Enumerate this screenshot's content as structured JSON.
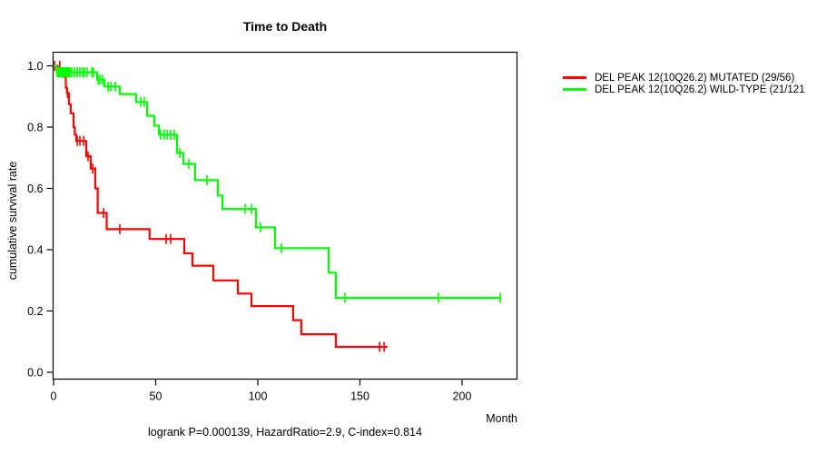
{
  "chart_data": {
    "type": "line",
    "subtype": "kaplan-meier-step",
    "title": "Time to Death",
    "xlabel": "Month",
    "ylabel": "cumulative survival rate",
    "xlim": [
      0,
      227
    ],
    "ylim": [
      0.0,
      1.0
    ],
    "grid": false,
    "legend_position": "right-outside",
    "x_ticks": [
      [
        0,
        "0"
      ],
      [
        50,
        "50"
      ],
      [
        100,
        "100"
      ],
      [
        150,
        "150"
      ],
      [
        200,
        "200"
      ]
    ],
    "y_ticks": [
      [
        0.0,
        "0.0"
      ],
      [
        0.2,
        "0.2"
      ],
      [
        0.4,
        "0.4"
      ],
      [
        0.6,
        "0.6"
      ],
      [
        0.8,
        "0.8"
      ],
      [
        1.0,
        "1.0"
      ]
    ],
    "caption": "logrank P=0.000139, HazardRatio=2.9, C-index=0.814",
    "stats": {
      "logrank_p": "0.000139",
      "hazard_ratio": "2.9",
      "c_index": "0.814"
    },
    "series": [
      {
        "name": "DEL PEAK 12(10Q26.2) MUTATED (29/56)",
        "color": "#ff0000",
        "points": [
          [
            0,
            1.0
          ],
          [
            2,
            0.982
          ],
          [
            5,
            0.964
          ],
          [
            6,
            0.929
          ],
          [
            6.6,
            0.911
          ],
          [
            7.5,
            0.875
          ],
          [
            8.4,
            0.845
          ],
          [
            9.8,
            0.8
          ],
          [
            10.4,
            0.775
          ],
          [
            11.1,
            0.755
          ],
          [
            16,
            0.705
          ],
          [
            18.2,
            0.665
          ],
          [
            20.4,
            0.6
          ],
          [
            21.6,
            0.52
          ],
          [
            26,
            0.467
          ],
          [
            47,
            0.435
          ],
          [
            64,
            0.388
          ],
          [
            68,
            0.348
          ],
          [
            78.2,
            0.3
          ],
          [
            90.2,
            0.257
          ],
          [
            96.9,
            0.216
          ],
          [
            117.3,
            0.17
          ],
          [
            121.3,
            0.124
          ],
          [
            138.2,
            0.083
          ],
          [
            163.5,
            0.083
          ]
        ],
        "censors": [
          [
            0.5,
            1.0
          ],
          [
            3,
            1.0
          ],
          [
            6.8,
            0.911
          ],
          [
            11.6,
            0.755
          ],
          [
            12.9,
            0.755
          ],
          [
            14.7,
            0.755
          ],
          [
            16.9,
            0.705
          ],
          [
            19.1,
            0.665
          ],
          [
            24.5,
            0.52
          ],
          [
            32.4,
            0.467
          ],
          [
            55.1,
            0.435
          ],
          [
            57.3,
            0.435
          ],
          [
            159.6,
            0.083
          ],
          [
            161.8,
            0.083
          ]
        ]
      },
      {
        "name": "DEL PEAK 12(10Q26.2) WILD-TYPE (21/121",
        "color": "#00ff00",
        "points": [
          [
            0,
            1.0
          ],
          [
            1.5,
            0.979
          ],
          [
            21.3,
            0.955
          ],
          [
            24.9,
            0.932
          ],
          [
            32.4,
            0.908
          ],
          [
            40.4,
            0.882
          ],
          [
            45.8,
            0.837
          ],
          [
            49.3,
            0.805
          ],
          [
            51.6,
            0.775
          ],
          [
            60.4,
            0.716
          ],
          [
            63.6,
            0.68
          ],
          [
            69.3,
            0.627
          ],
          [
            80.4,
            0.577
          ],
          [
            82.7,
            0.533
          ],
          [
            99.1,
            0.473
          ],
          [
            108.4,
            0.405
          ],
          [
            134.7,
            0.325
          ],
          [
            138.2,
            0.243
          ],
          [
            219,
            0.243
          ]
        ],
        "censors": [
          [
            1.8,
            0.979
          ],
          [
            2.2,
            0.979
          ],
          [
            2.7,
            0.979
          ],
          [
            3.1,
            0.979
          ],
          [
            3.6,
            0.979
          ],
          [
            4,
            0.979
          ],
          [
            4.4,
            0.979
          ],
          [
            4.9,
            0.979
          ],
          [
            5.3,
            0.979
          ],
          [
            5.8,
            0.979
          ],
          [
            6.2,
            0.979
          ],
          [
            6.7,
            0.979
          ],
          [
            7.1,
            0.979
          ],
          [
            7.6,
            0.979
          ],
          [
            8,
            0.979
          ],
          [
            8.9,
            0.979
          ],
          [
            10.2,
            0.979
          ],
          [
            11.6,
            0.979
          ],
          [
            12.9,
            0.979
          ],
          [
            14.2,
            0.979
          ],
          [
            15.1,
            0.979
          ],
          [
            16.4,
            0.979
          ],
          [
            18.7,
            0.979
          ],
          [
            19.6,
            0.979
          ],
          [
            21.8,
            0.955
          ],
          [
            22.7,
            0.955
          ],
          [
            24,
            0.955
          ],
          [
            26.7,
            0.932
          ],
          [
            28,
            0.932
          ],
          [
            30.2,
            0.932
          ],
          [
            42.7,
            0.882
          ],
          [
            44.4,
            0.882
          ],
          [
            52.4,
            0.775
          ],
          [
            54.2,
            0.775
          ],
          [
            55.6,
            0.775
          ],
          [
            57.3,
            0.775
          ],
          [
            59.1,
            0.775
          ],
          [
            61.8,
            0.716
          ],
          [
            66.2,
            0.68
          ],
          [
            75.1,
            0.627
          ],
          [
            93.8,
            0.533
          ],
          [
            96.9,
            0.533
          ],
          [
            101.3,
            0.473
          ],
          [
            111.6,
            0.405
          ],
          [
            142.7,
            0.243
          ],
          [
            188.4,
            0.243
          ],
          [
            218.7,
            0.243
          ]
        ]
      }
    ]
  }
}
